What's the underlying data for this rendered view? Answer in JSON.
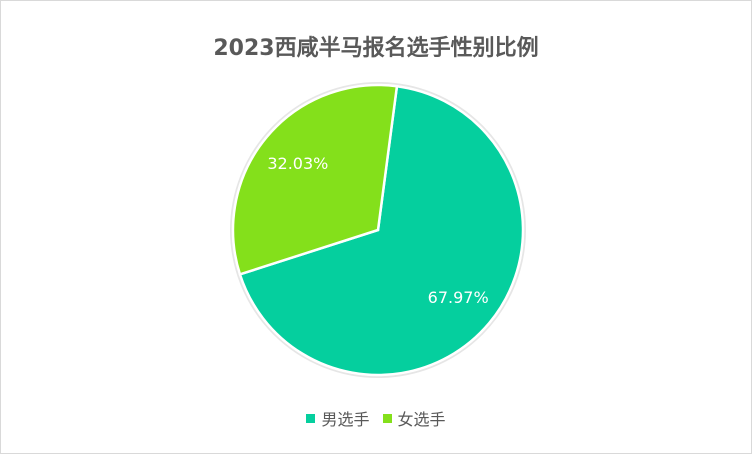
{
  "chart_data": {
    "type": "pie",
    "title": "2023西咸半马报名选手性别比例",
    "categories": [
      "男选手",
      "女选手"
    ],
    "values": [
      67.97,
      32.03
    ],
    "labels": [
      "67.97%",
      "32.03%"
    ],
    "colors": [
      "#05cf9e",
      "#84e01b"
    ],
    "legend": "bottom"
  }
}
